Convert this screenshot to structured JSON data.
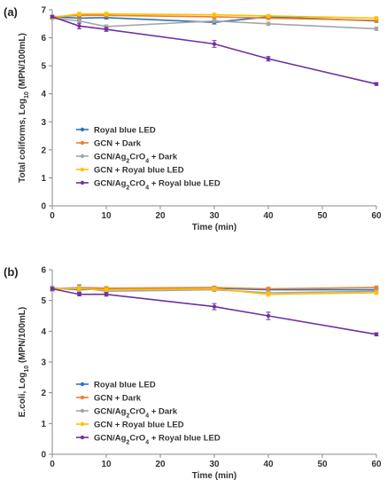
{
  "chart_data": [
    {
      "panel_label": "(a)",
      "type": "line",
      "xlabel": "Time (min)",
      "ylabel": "Total coliforms, Log",
      "ylabel_sub": "10",
      "ylabel_unit": " (MPN/100mL)",
      "x": [
        0,
        5,
        10,
        30,
        40,
        60
      ],
      "xticks": [
        0,
        10,
        20,
        30,
        40,
        50,
        60
      ],
      "yticks": [
        0,
        1,
        2,
        3,
        4,
        5,
        6,
        7
      ],
      "xlim": [
        0,
        60
      ],
      "ylim": [
        0,
        7
      ],
      "legend_placement": "lower-left",
      "series": [
        {
          "name": "Royal blue LED",
          "color": "#2E75B6",
          "values": [
            6.75,
            6.7,
            6.72,
            6.55,
            6.75,
            6.6
          ],
          "err": [
            0.05,
            0.06,
            0.05,
            0.06,
            0.05,
            0.05
          ]
        },
        {
          "name": "GCN + Dark",
          "color": "#ED7D31",
          "values": [
            6.75,
            6.8,
            6.8,
            6.75,
            6.7,
            6.62
          ],
          "err": [
            0.05,
            0.06,
            0.06,
            0.06,
            0.05,
            0.06
          ]
        },
        {
          "name": "GCN/Ag2CrO4 + Dark",
          "sub": "2",
          "sub2": "4",
          "color": "#A5A5A5",
          "values": [
            6.7,
            6.6,
            6.4,
            6.6,
            6.5,
            6.32
          ],
          "err": [
            0.05,
            0.08,
            0.06,
            0.05,
            0.06,
            0.06
          ]
        },
        {
          "name": "GCN + Royal blue LED",
          "color": "#FFC000",
          "values": [
            6.72,
            6.85,
            6.85,
            6.82,
            6.78,
            6.7
          ],
          "err": [
            0.05,
            0.06,
            0.06,
            0.06,
            0.05,
            0.05
          ]
        },
        {
          "name": "GCN/Ag2CrO4 + Royal blue LED",
          "sub": "2",
          "sub2": "4",
          "color": "#7030A0",
          "values": [
            6.75,
            6.42,
            6.3,
            5.78,
            5.25,
            4.35
          ],
          "err": [
            0.05,
            0.1,
            0.07,
            0.12,
            0.08,
            0.05
          ]
        }
      ]
    },
    {
      "panel_label": "(b)",
      "type": "line",
      "xlabel": "Time (min)",
      "ylabel": "E.coli, Log",
      "ylabel_sub": "10",
      "ylabel_unit": " (MPN/100mL)",
      "x": [
        0,
        5,
        10,
        30,
        40,
        60
      ],
      "xticks": [
        0,
        10,
        20,
        30,
        40,
        50,
        60
      ],
      "yticks": [
        0,
        1,
        2,
        3,
        4,
        5,
        6
      ],
      "xlim": [
        0,
        60
      ],
      "ylim": [
        0,
        6
      ],
      "legend_placement": "lower-left",
      "series": [
        {
          "name": "Royal blue LED",
          "color": "#2E75B6",
          "values": [
            5.4,
            5.35,
            5.38,
            5.4,
            5.35,
            5.35
          ],
          "err": [
            0.05,
            0.08,
            0.06,
            0.05,
            0.05,
            0.05
          ]
        },
        {
          "name": "GCN + Dark",
          "color": "#ED7D31",
          "values": [
            5.38,
            5.42,
            5.4,
            5.42,
            5.38,
            5.42
          ],
          "err": [
            0.05,
            0.07,
            0.05,
            0.05,
            0.05,
            0.05
          ]
        },
        {
          "name": "GCN/Ag2CrO4 + Dark",
          "sub": "2",
          "sub2": "4",
          "color": "#A5A5A5",
          "values": [
            5.35,
            5.42,
            5.3,
            5.35,
            5.25,
            5.3
          ],
          "err": [
            0.05,
            0.1,
            0.06,
            0.06,
            0.06,
            0.05
          ]
        },
        {
          "name": "GCN + Royal blue LED",
          "color": "#FFC000",
          "values": [
            5.38,
            5.38,
            5.35,
            5.38,
            5.2,
            5.25
          ],
          "err": [
            0.05,
            0.07,
            0.06,
            0.05,
            0.06,
            0.05
          ]
        },
        {
          "name": "GCN/Ag2CrO4 + Royal blue LED",
          "sub": "2",
          "sub2": "4",
          "color": "#7030A0",
          "values": [
            5.38,
            5.2,
            5.2,
            4.8,
            4.5,
            3.9
          ],
          "err": [
            0.05,
            0.05,
            0.06,
            0.1,
            0.12,
            0.05
          ]
        }
      ]
    }
  ]
}
